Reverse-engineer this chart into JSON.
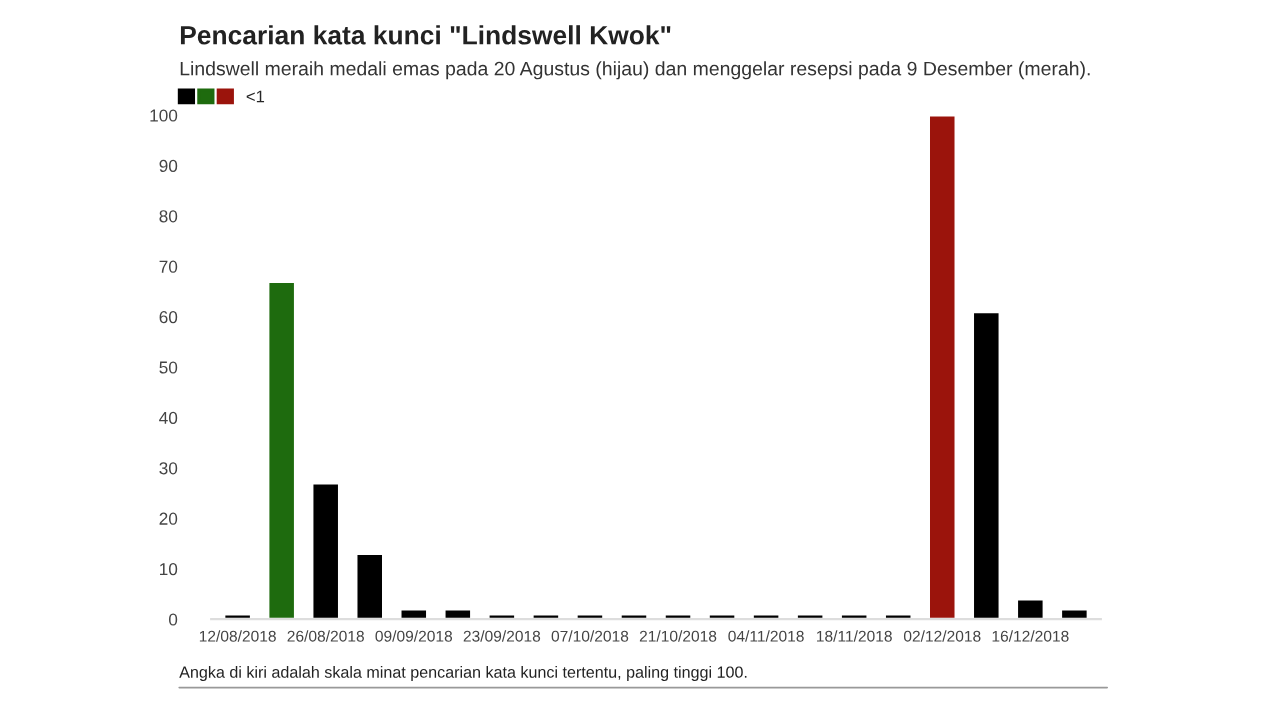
{
  "chart_data": {
    "type": "bar",
    "title": "Pencarian kata kunci \"Lindswell Kwok\"",
    "subtitle": "Lindswell meraih medali emas pada 20 Agustus (hijau) dan menggelar resepsi pada 9 Desember (merah).",
    "categories": [
      "12/08/2018",
      null,
      "26/08/2018",
      null,
      "09/09/2018",
      null,
      "23/09/2018",
      null,
      "07/10/2018",
      null,
      "21/10/2018",
      null,
      "04/11/2018",
      null,
      "18/11/2018",
      null,
      "02/12/2018",
      null,
      "16/12/2018",
      null
    ],
    "series": [
      {
        "name": "<1",
        "colors": [
          "#000000",
          "#1e6b0e",
          "#000000",
          "#000000",
          "#000000",
          "#000000",
          "#000000",
          "#000000",
          "#000000",
          "#000000",
          "#000000",
          "#000000",
          "#000000",
          "#000000",
          "#000000",
          "#000000",
          "#9b140c",
          "#000000",
          "#000000",
          "#000000"
        ],
        "values": [
          1,
          67,
          27,
          13,
          2,
          2,
          1,
          1,
          1,
          1,
          1,
          1,
          1,
          1,
          1,
          1,
          100,
          61,
          4,
          2
        ]
      }
    ],
    "ylim": [
      0,
      100
    ],
    "yticks": [
      0,
      10,
      20,
      30,
      40,
      50,
      60,
      70,
      80,
      90,
      100
    ],
    "grid": false,
    "legend": "top left",
    "annotations": [
      "Angka di kiri adalah skala minat pencarian kata kunci tertentu, paling tinggi 100."
    ]
  }
}
